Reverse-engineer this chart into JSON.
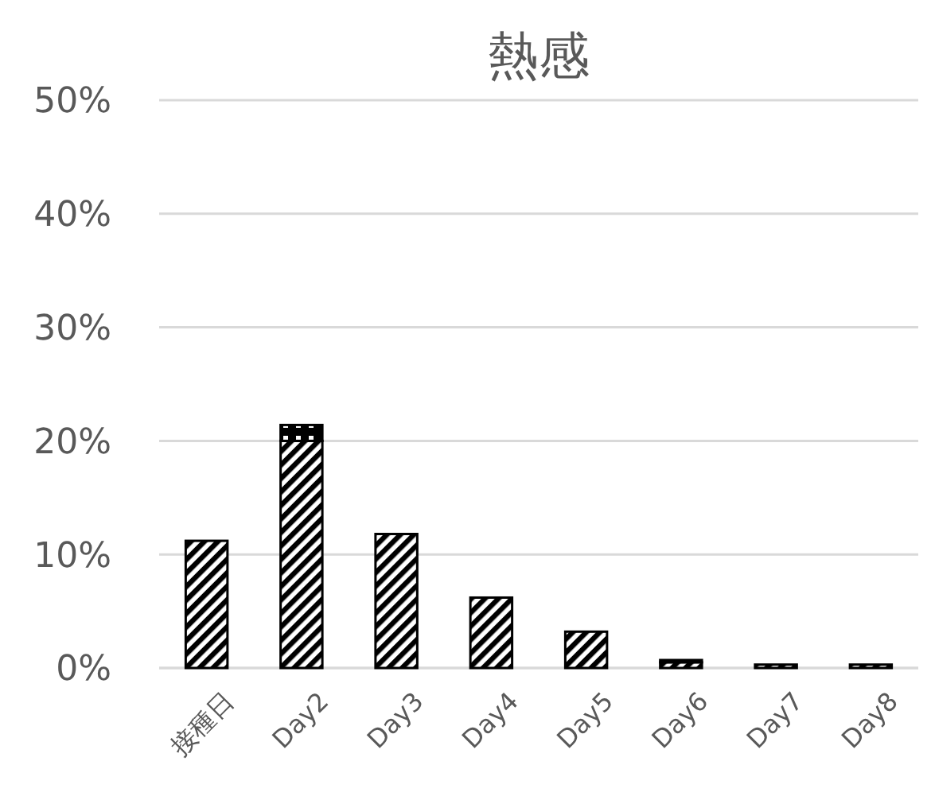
{
  "chart_data": {
    "type": "bar",
    "title": "熱感",
    "stacked": true,
    "categories": [
      "接種日",
      "Day2",
      "Day3",
      "Day4",
      "Day5",
      "Day6",
      "Day7",
      "Day8"
    ],
    "series": [
      {
        "color": "#000000",
        "values": [
          11.2,
          20.0,
          11.8,
          6.2,
          3.2,
          0.5,
          0.3,
          0.3
        ]
      },
      {
        "color": "#000000",
        "values": [
          0,
          1.4,
          0,
          0,
          0,
          0.2,
          0,
          0
        ]
      }
    ],
    "ylim": [
      0,
      50
    ],
    "yticks": [
      {
        "value": 0,
        "label": "0%"
      },
      {
        "value": 10,
        "label": "10%"
      },
      {
        "value": 20,
        "label": "20%"
      },
      {
        "value": 30,
        "label": "30%"
      },
      {
        "value": 40,
        "label": "40%"
      },
      {
        "value": 50,
        "label": "50%"
      }
    ],
    "grid": "y"
  }
}
